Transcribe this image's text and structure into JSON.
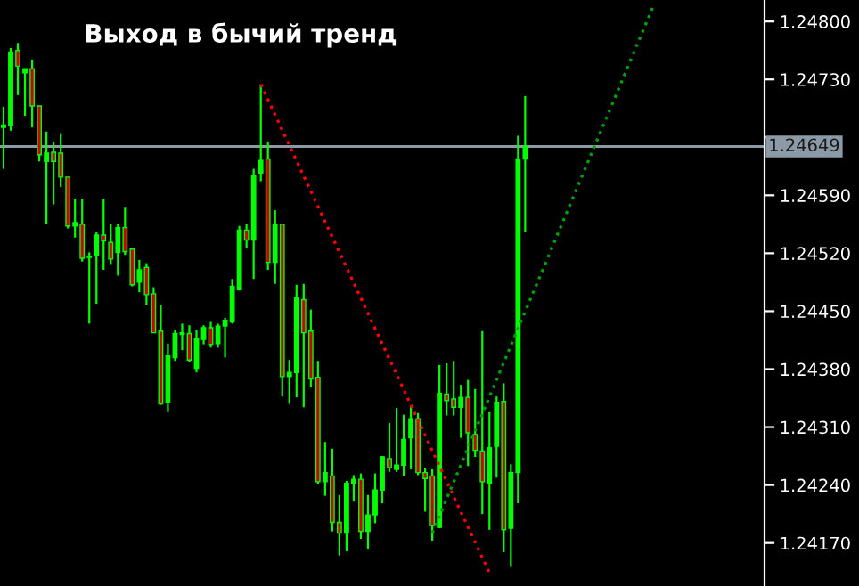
{
  "chart_data": {
    "type": "candlestick",
    "title": "Выход в бычий тренд",
    "categories": [
      null,
      null,
      null,
      null,
      null,
      null,
      null,
      null,
      null,
      null,
      null,
      null,
      null,
      null,
      null,
      null,
      null,
      null,
      null,
      null,
      null,
      null,
      null,
      null,
      null,
      null,
      null,
      null,
      null,
      null,
      null,
      null,
      null,
      null,
      null,
      null,
      null,
      null,
      null,
      null,
      null,
      null,
      null,
      null,
      null,
      null,
      null,
      null,
      null,
      null,
      null,
      null,
      null,
      null,
      null,
      null,
      null,
      null,
      null,
      null,
      null,
      null,
      null,
      null,
      null,
      null,
      null,
      null,
      null,
      null,
      null,
      null,
      null,
      null,
      null,
      null,
      null,
      null,
      null,
      null,
      null,
      null,
      null,
      null,
      null,
      null,
      null,
      null,
      null,
      null,
      null,
      null,
      null,
      null,
      null,
      null,
      null,
      null,
      null,
      null,
      null,
      null,
      null,
      null,
      null,
      null,
      null
    ],
    "ohlc": [
      [
        1.24672,
        1.24697,
        1.24622,
        1.24675
      ],
      [
        1.24674,
        1.24768,
        1.24668,
        1.24763
      ],
      [
        1.24765,
        1.24774,
        1.24711,
        1.24746
      ],
      [
        1.24738,
        1.24743,
        1.24686,
        1.24743
      ],
      [
        1.24743,
        1.24754,
        1.24672,
        1.24698
      ],
      [
        1.24698,
        1.24698,
        1.24631,
        1.24639
      ],
      [
        1.24631,
        1.24667,
        1.24555,
        1.24641
      ],
      [
        1.24642,
        1.24655,
        1.24579,
        1.24631
      ],
      [
        1.24641,
        1.24665,
        1.246,
        1.24612
      ],
      [
        1.24612,
        1.24612,
        1.2455,
        1.24553
      ],
      [
        1.24553,
        1.24586,
        1.24539,
        1.24557
      ],
      [
        1.24555,
        1.24586,
        1.2451,
        1.24514
      ],
      [
        1.24515,
        1.24521,
        1.24435,
        1.24516
      ],
      [
        1.24518,
        1.24546,
        1.24459,
        1.24542
      ],
      [
        1.24542,
        1.24585,
        1.245,
        1.24535
      ],
      [
        1.24533,
        1.24555,
        1.24507,
        1.24513
      ],
      [
        1.24521,
        1.24555,
        1.24493,
        1.24551
      ],
      [
        1.24551,
        1.24576,
        1.24518,
        1.24522
      ],
      [
        1.24525,
        1.24525,
        1.2448,
        1.24482
      ],
      [
        1.24485,
        1.24512,
        1.24473,
        1.245
      ],
      [
        1.24503,
        1.24508,
        1.24457,
        1.2447
      ],
      [
        1.24471,
        1.24479,
        1.24424,
        1.24424
      ],
      [
        1.24426,
        1.24457,
        1.24337,
        1.24338
      ],
      [
        1.2434,
        1.24411,
        1.24328,
        1.24396
      ],
      [
        1.24394,
        1.24427,
        1.2439,
        1.24423
      ],
      [
        1.24422,
        1.24435,
        1.24403,
        1.24424
      ],
      [
        1.24423,
        1.24433,
        1.24389,
        1.24391
      ],
      [
        1.24381,
        1.24427,
        1.24376,
        1.24417
      ],
      [
        1.24416,
        1.24433,
        1.2441,
        1.2443
      ],
      [
        1.2443,
        1.24437,
        1.24406,
        1.2441
      ],
      [
        1.24411,
        1.24435,
        1.24406,
        1.24432
      ],
      [
        1.24432,
        1.24442,
        1.24394,
        1.24439
      ],
      [
        1.24437,
        1.24489,
        1.24435,
        1.2448
      ],
      [
        1.24476,
        1.24553,
        1.24475,
        1.24548
      ],
      [
        1.24548,
        1.24555,
        1.24526,
        1.24536
      ],
      [
        1.24536,
        1.24622,
        1.24489,
        1.24614
      ],
      [
        1.24617,
        1.24724,
        1.24607,
        1.24632
      ],
      [
        1.24634,
        1.24655,
        1.245,
        1.24509
      ],
      [
        1.24509,
        1.24572,
        1.24483,
        1.24555
      ],
      [
        1.24555,
        1.24555,
        1.24347,
        1.24371
      ],
      [
        1.24371,
        1.24391,
        1.24338,
        1.24376
      ],
      [
        1.24376,
        1.24482,
        1.24346,
        1.24466
      ],
      [
        1.24464,
        1.24483,
        1.24334,
        1.24424
      ],
      [
        1.24426,
        1.24452,
        1.24358,
        1.24368
      ],
      [
        1.2437,
        1.2439,
        1.24241,
        1.24244
      ],
      [
        1.24244,
        1.24292,
        1.24227,
        1.24255
      ],
      [
        1.24251,
        1.24284,
        1.24184,
        1.24195
      ],
      [
        1.24195,
        1.24228,
        1.24155,
        1.24182
      ],
      [
        1.24182,
        1.24245,
        1.2416,
        1.24242
      ],
      [
        1.24242,
        1.24252,
        1.2422,
        1.24247
      ],
      [
        1.24247,
        1.24254,
        1.24175,
        1.24184
      ],
      [
        1.24184,
        1.24228,
        1.24163,
        1.24204
      ],
      [
        1.24204,
        1.24254,
        1.24194,
        1.24234
      ],
      [
        1.24234,
        1.24275,
        1.24218,
        1.24274
      ],
      [
        1.24272,
        1.24315,
        1.24256,
        1.24261
      ],
      [
        1.24259,
        1.24333,
        1.24256,
        1.24264
      ],
      [
        1.24264,
        1.24325,
        1.24251,
        1.24295
      ],
      [
        1.24297,
        1.24335,
        1.24259,
        1.2432
      ],
      [
        1.2432,
        1.24327,
        1.24252,
        1.24255
      ],
      [
        1.24255,
        1.24261,
        1.24208,
        1.24248
      ],
      [
        1.24251,
        1.24259,
        1.24172,
        1.24191
      ],
      [
        1.24189,
        1.24385,
        1.24188,
        1.24351
      ],
      [
        1.2435,
        1.24387,
        1.24324,
        1.24342
      ],
      [
        1.24344,
        1.2439,
        1.24324,
        1.24334
      ],
      [
        1.24334,
        1.24361,
        1.24297,
        1.24346
      ],
      [
        1.24346,
        1.24367,
        1.24263,
        1.24303
      ],
      [
        1.24301,
        1.24356,
        1.24274,
        1.24282
      ],
      [
        1.24281,
        1.24426,
        1.24205,
        1.24244
      ],
      [
        1.24242,
        1.24328,
        1.24186,
        1.24285
      ],
      [
        1.24287,
        1.24347,
        1.24249,
        1.2434
      ],
      [
        1.24341,
        1.24363,
        1.24159,
        1.24186
      ],
      [
        1.24188,
        1.24265,
        1.24141,
        1.24255
      ],
      [
        1.24255,
        1.24662,
        1.24218,
        1.24634
      ],
      [
        1.24634,
        1.2471,
        1.24546,
        1.24649
      ],
      null,
      null,
      null,
      null,
      null,
      null,
      null,
      null,
      null,
      null,
      null,
      null,
      null,
      null,
      null,
      null,
      null,
      null,
      null,
      null,
      null,
      null,
      null,
      null,
      null,
      null,
      null,
      null,
      null,
      null,
      null,
      null,
      null
    ],
    "color": "#00ff00",
    "colors": [
      "#00ff00",
      "#00ff00",
      "#d00000",
      "#00ff00",
      "#d00000",
      "#d00000",
      "#00ff00",
      "#d00000",
      "#d00000",
      "#d00000",
      "#00ff00",
      "#d00000",
      "#00ff00",
      "#00ff00",
      "#d00000",
      "#d00000",
      "#00ff00",
      "#d00000",
      "#d00000",
      "#00ff00",
      "#d00000",
      "#d00000",
      "#d00000",
      "#00ff00",
      "#00ff00",
      "#00ff00",
      "#d00000",
      "#00ff00",
      "#00ff00",
      "#d00000",
      "#00ff00",
      "#00ff00",
      "#00ff00",
      "#00ff00",
      "#d00000",
      "#00ff00",
      "#00ff00",
      "#d00000",
      "#00ff00",
      "#d00000",
      "#00ff00",
      "#00ff00",
      "#d00000",
      "#d00000",
      "#d00000",
      "#00ff00",
      "#d00000",
      "#d00000",
      "#00ff00",
      "#00ff00",
      "#d00000",
      "#00ff00",
      "#00ff00",
      "#00ff00",
      "#d00000",
      "#00ff00",
      "#00ff00",
      "#00ff00",
      "#d00000",
      "#d00000",
      "#d00000",
      "#00ff00",
      "#d00000",
      "#d00000",
      "#00ff00",
      "#d00000",
      "#d00000",
      "#d00000",
      "#00ff00",
      "#00ff00",
      "#d00000",
      "#00ff00",
      "#00ff00",
      "#00ff00",
      null,
      null,
      null,
      null,
      null,
      null,
      null,
      null,
      null,
      null,
      null,
      null,
      null,
      null,
      null,
      null,
      null,
      null,
      null,
      null,
      null,
      null,
      null,
      null,
      null,
      null,
      null,
      null,
      null,
      null,
      null,
      null,
      null
    ],
    "series": [
      {
        "type": "line",
        "color": "#ff0000",
        "line_style": "dotted",
        "values": [
          null,
          null,
          null,
          null,
          null,
          null,
          null,
          null,
          null,
          null,
          null,
          null,
          null,
          null,
          null,
          null,
          null,
          null,
          null,
          null,
          null,
          null,
          null,
          null,
          null,
          null,
          null,
          null,
          null,
          null,
          null,
          null,
          null,
          null,
          null,
          null,
          1.24724,
          null,
          null,
          null,
          null,
          null,
          null,
          null,
          null,
          null,
          null,
          null,
          null,
          null,
          null,
          null,
          null,
          null,
          null,
          null,
          null,
          null,
          null,
          null,
          null,
          null,
          null,
          null,
          null,
          null,
          null,
          null,
          1.24134,
          null,
          null,
          null,
          null,
          null,
          null,
          null,
          null,
          null,
          null,
          null,
          null,
          null,
          null,
          null,
          null,
          null,
          null,
          null,
          null,
          null,
          null,
          null,
          null,
          null,
          null,
          null,
          null,
          null,
          null,
          null,
          null,
          null,
          null,
          null,
          null,
          null,
          null
        ]
      },
      {
        "type": "line",
        "color": "#00a000",
        "line_style": "dotted",
        "values": [
          null,
          null,
          null,
          null,
          null,
          null,
          null,
          null,
          null,
          null,
          null,
          null,
          null,
          null,
          null,
          null,
          null,
          null,
          null,
          null,
          null,
          null,
          null,
          null,
          null,
          null,
          null,
          null,
          null,
          null,
          null,
          null,
          null,
          null,
          null,
          null,
          null,
          null,
          null,
          null,
          null,
          null,
          null,
          null,
          null,
          null,
          null,
          null,
          null,
          null,
          null,
          null,
          null,
          null,
          null,
          null,
          null,
          null,
          null,
          null,
          1.24182,
          null,
          null,
          null,
          null,
          null,
          null,
          null,
          null,
          null,
          null,
          null,
          null,
          null,
          null,
          null,
          null,
          null,
          null,
          null,
          null,
          null,
          null,
          null,
          null,
          null,
          null,
          null,
          null,
          null,
          null,
          1.2482,
          null,
          null,
          null,
          null,
          null,
          null,
          null,
          null,
          null,
          null,
          null,
          null,
          null,
          null,
          null
        ]
      }
    ],
    "ylim": [
      1.24118,
      1.24826
    ],
    "yticks": [
      {
        "value": 1.248,
        "label": "1.24800"
      },
      {
        "value": 1.2473,
        "label": "1.24730"
      },
      {
        "value": 1.2466,
        "label": null
      },
      {
        "value": 1.2459,
        "label": "1.24590"
      },
      {
        "value": 1.2452,
        "label": "1.24520"
      },
      {
        "value": 1.2445,
        "label": "1.24450"
      },
      {
        "value": 1.2438,
        "label": "1.24380"
      },
      {
        "value": 1.2431,
        "label": "1.24310"
      },
      {
        "value": 1.2424,
        "label": "1.24240"
      },
      {
        "value": 1.2417,
        "label": "1.24170"
      }
    ],
    "ref_lines": [
      {
        "axis": "y",
        "value": 1.24649,
        "label": "1.24649",
        "color": "#8c9aa8"
      }
    ],
    "tick_labels": "y",
    "grid": false,
    "legend": false
  }
}
